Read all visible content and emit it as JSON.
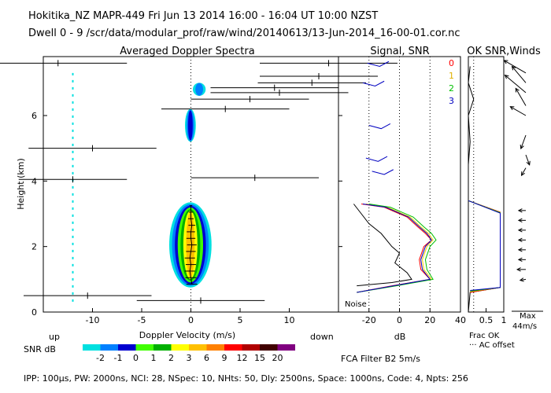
{
  "header": {
    "title": "Hokitika_NZ   MAPR-449   Fri Jun 13 2014 16:00 - 16:04 UT 10:00 NZST",
    "dwell": "Dwell   0 - 9   /scr/data/modular_prof/raw/wind/20140613/13-Jun-2014_16-00-01.cor.nc"
  },
  "footer": {
    "params": "IPP: 100μs,  PW: 2000ns,  NCI:  28,  NSpec: 10, NHts: 50,  Dly: 2500ns,  Space: 1000ns,  Code: 4,  Npts: 256",
    "fca": "FCA Filter B2   5m/s"
  },
  "colorbar": {
    "label": "SNR dB",
    "colors": [
      "#00e0e0",
      "#0080ff",
      "#0000d0",
      "#40ff00",
      "#00b000",
      "#ffff00",
      "#ffc000",
      "#ff8000",
      "#ff0000",
      "#b00000",
      "#400000",
      "#800080"
    ],
    "ticks": [
      "-2",
      "-1",
      "0",
      "1",
      "2",
      "3",
      "6",
      "9",
      "12",
      "15",
      "20"
    ]
  },
  "chart_data": [
    {
      "type": "heatmap",
      "title": "Averaged Doppler Spectra",
      "xlabel": "Doppler Velocity (m/s)",
      "ylabel": "Height (km)",
      "xlim": [
        -15,
        15
      ],
      "ylim": [
        0,
        7.8
      ],
      "xticks": [
        -10,
        -5,
        0,
        5,
        10
      ],
      "yticks": [
        0,
        2,
        4,
        6
      ],
      "left_end_label": "up",
      "right_end_label": "down",
      "noise_line_velocity": -12,
      "spectra_blobs": [
        {
          "name": "main-echo",
          "vmin": -2.2,
          "vmax": 2.1,
          "hmin": 0.75,
          "hmax": 3.35,
          "peak_snr_db": 6
        },
        {
          "name": "echo-5.6km",
          "vmin": -0.6,
          "vmax": 0.5,
          "hmin": 5.2,
          "hmax": 6.2,
          "peak_snr_db": 0
        },
        {
          "name": "echo-6.8km",
          "vmin": 0.2,
          "vmax": 1.5,
          "hmin": 6.6,
          "hmax": 7.0,
          "peak_snr_db": -1
        }
      ],
      "velocity_profile": [
        {
          "height": 0.85,
          "velocity": 0.1,
          "half_width": 1.6
        },
        {
          "height": 1.05,
          "velocity": 0.0,
          "half_width": 1.6
        },
        {
          "height": 1.25,
          "velocity": -0.1,
          "half_width": 1.5
        },
        {
          "height": 1.45,
          "velocity": 0.0,
          "half_width": 1.5
        },
        {
          "height": 1.65,
          "velocity": -0.1,
          "half_width": 1.5
        },
        {
          "height": 1.85,
          "velocity": 0.0,
          "half_width": 1.4
        },
        {
          "height": 2.05,
          "velocity": 0.1,
          "half_width": 1.4
        },
        {
          "height": 2.25,
          "velocity": 0.0,
          "half_width": 1.3
        },
        {
          "height": 2.45,
          "velocity": 0.0,
          "half_width": 1.2
        },
        {
          "height": 2.65,
          "velocity": 0.1,
          "half_width": 1.0
        },
        {
          "height": 2.85,
          "velocity": 0.0,
          "half_width": 0.8
        },
        {
          "height": 3.05,
          "velocity": 0.0,
          "half_width": 0.6
        },
        {
          "height": 3.25,
          "velocity": 0.0,
          "half_width": 0.4
        }
      ],
      "outlier_bars": [
        {
          "height": 7.6,
          "velocity": -13.5,
          "half_width": 7
        },
        {
          "height": 7.6,
          "velocity": 14.0,
          "half_width": 7
        },
        {
          "height": 7.2,
          "velocity": 13.0,
          "half_width": 6
        },
        {
          "height": 7.0,
          "velocity": 12.3,
          "half_width": 5.5
        },
        {
          "height": 6.85,
          "velocity": 8.5,
          "half_width": 6.5
        },
        {
          "height": 6.7,
          "velocity": 9.0,
          "half_width": 7
        },
        {
          "height": 6.5,
          "velocity": 6.0,
          "half_width": 6
        },
        {
          "height": 6.2,
          "velocity": 3.5,
          "half_width": 6.5
        },
        {
          "height": 5.0,
          "velocity": -10.0,
          "half_width": 6.5
        },
        {
          "height": 4.05,
          "velocity": -12.0,
          "half_width": 5.5
        },
        {
          "height": 4.1,
          "velocity": 6.5,
          "half_width": 6.5
        },
        {
          "height": 0.5,
          "velocity": -10.5,
          "half_width": 6.5
        },
        {
          "height": 0.35,
          "velocity": 1.0,
          "half_width": 6.5
        }
      ]
    },
    {
      "type": "line",
      "title": "Signal, SNR",
      "xlabel": "dB",
      "xlim": [
        -40,
        40
      ],
      "xticks": [
        -20,
        0,
        20,
        40
      ],
      "ylim": [
        0,
        7.8
      ],
      "noise_label": "Noise",
      "dotted_reference_x": [
        -20,
        0,
        20
      ],
      "series": [
        {
          "name": "0",
          "color": "#ff0000",
          "points": [
            [
              -25,
              3.3
            ],
            [
              -10,
              3.2
            ],
            [
              5,
              2.9
            ],
            [
              12,
              2.6
            ],
            [
              17,
              2.4
            ],
            [
              21,
              2.2
            ],
            [
              16,
              2.0
            ],
            [
              13,
              1.6
            ],
            [
              14,
              1.3
            ],
            [
              20,
              1.0
            ],
            [
              -5,
              0.8
            ],
            [
              -28,
              0.6
            ]
          ]
        },
        {
          "name": "1",
          "color": "#ffd000",
          "points": [
            [
              -22,
              3.3
            ],
            [
              -8,
              3.2
            ],
            [
              7,
              2.9
            ],
            [
              14,
              2.6
            ],
            [
              19,
              2.4
            ],
            [
              22,
              2.2
            ],
            [
              18,
              2.0
            ],
            [
              15,
              1.6
            ],
            [
              16,
              1.3
            ],
            [
              21,
              1.0
            ],
            [
              -3,
              0.8
            ],
            [
              -28,
              0.6
            ]
          ]
        },
        {
          "name": "2",
          "color": "#00c000",
          "points": [
            [
              -20,
              3.3
            ],
            [
              -6,
              3.2
            ],
            [
              9,
              2.9
            ],
            [
              16,
              2.6
            ],
            [
              21,
              2.4
            ],
            [
              24,
              2.2
            ],
            [
              20,
              2.0
            ],
            [
              17,
              1.6
            ],
            [
              18,
              1.3
            ],
            [
              22,
              1.0
            ],
            [
              -2,
              0.8
            ],
            [
              -28,
              0.6
            ]
          ]
        },
        {
          "name": "3",
          "color": "#0000c0",
          "points": [
            [
              -24,
              3.3
            ],
            [
              -9,
              3.2
            ],
            [
              6,
              2.9
            ],
            [
              13,
              2.6
            ],
            [
              18,
              2.4
            ],
            [
              21,
              2.2
            ],
            [
              17,
              2.0
            ],
            [
              14,
              1.6
            ],
            [
              15,
              1.3
            ],
            [
              20,
              1.0
            ],
            [
              -4,
              0.8
            ],
            [
              -28,
              0.6
            ]
          ]
        },
        {
          "name": "noise",
          "color": "#000000",
          "points": [
            [
              -30,
              3.3
            ],
            [
              -25,
              3.0
            ],
            [
              -20,
              2.7
            ],
            [
              -12,
              2.4
            ],
            [
              -5,
              2.0
            ],
            [
              0,
              1.8
            ],
            [
              -3,
              1.5
            ],
            [
              5,
              1.2
            ],
            [
              8,
              1.0
            ],
            [
              -5,
              0.9
            ],
            [
              -28,
              0.8
            ]
          ]
        }
      ]
    },
    {
      "type": "line",
      "title": "OK SNR,Winds",
      "xlabel": "Frac OK",
      "xlim": [
        0,
        1
      ],
      "xticks": [
        0.5,
        1
      ],
      "legend": [
        "0",
        "1",
        "2",
        "3"
      ],
      "legend_colors": [
        "#ff0000",
        "#e0b000",
        "#00c000",
        "#0000c0"
      ],
      "ac_offset_label": "··· AC offset",
      "wind_max_label": "Max",
      "wind_max_speed": "44m/s",
      "series": [
        {
          "name": "frac-ok",
          "color": "#000000",
          "points": [
            [
              0.05,
              7.5
            ],
            [
              0.0,
              7.0
            ],
            [
              0.15,
              6.5
            ],
            [
              0.0,
              6.0
            ],
            [
              0.05,
              5.2
            ],
            [
              0.0,
              4.5
            ],
            [
              0.0,
              3.4
            ],
            [
              0.9,
              3.05
            ],
            [
              0.9,
              0.75
            ],
            [
              0.05,
              0.6
            ],
            [
              0.0,
              0.0
            ]
          ]
        }
      ],
      "winds": [
        {
          "height": 7.3,
          "speed": 35,
          "direction": 300
        },
        {
          "height": 7.0,
          "speed": 30,
          "direction": 320
        },
        {
          "height": 6.7,
          "speed": 38,
          "direction": 310
        },
        {
          "height": 6.3,
          "speed": 28,
          "direction": 330
        },
        {
          "height": 6.0,
          "speed": 25,
          "direction": 300
        },
        {
          "height": 5.4,
          "speed": 20,
          "direction": 200
        },
        {
          "height": 4.8,
          "speed": 15,
          "direction": 160
        },
        {
          "height": 4.4,
          "speed": 12,
          "direction": 210
        },
        {
          "height": 3.1,
          "speed": 10,
          "direction": 270
        },
        {
          "height": 2.8,
          "speed": 10,
          "direction": 270
        },
        {
          "height": 2.5,
          "speed": 10,
          "direction": 270
        },
        {
          "height": 2.2,
          "speed": 10,
          "direction": 270
        },
        {
          "height": 1.9,
          "speed": 10,
          "direction": 270
        },
        {
          "height": 1.6,
          "speed": 10,
          "direction": 270
        },
        {
          "height": 1.3,
          "speed": 12,
          "direction": 270
        },
        {
          "height": 1.0,
          "speed": 8,
          "direction": 260
        }
      ]
    }
  ]
}
